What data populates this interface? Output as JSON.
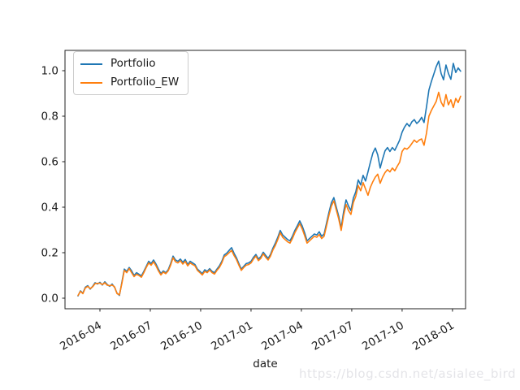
{
  "watermark": {
    "text": "https://blog.csdn.net/asialee_bird",
    "color": "#e4e4e8"
  },
  "chart_data": {
    "type": "line",
    "title": "",
    "xlabel": "date",
    "ylabel": "",
    "grid": false,
    "background": "#ffffff",
    "spine_color": "#222222",
    "tick_text_color": "#1a1a1a",
    "x_axis": {
      "range": [
        2016.0766,
        2018.0649
      ],
      "ticks": [
        2016.25,
        2016.5,
        2016.75,
        2017.0,
        2017.25,
        2017.5,
        2017.75,
        2018.0
      ],
      "tick_labels": [
        "2016-04",
        "2016-07",
        "2016-10",
        "2017-01",
        "2017-04",
        "2017-07",
        "2017-10",
        "2018-01"
      ],
      "label_rotation_deg": 30
    },
    "y_axis": {
      "range": [
        -0.0464,
        1.0893
      ],
      "ticks": [
        0.0,
        0.2,
        0.4,
        0.6,
        0.8,
        1.0
      ],
      "tick_labels": [
        "0.0",
        "0.2",
        "0.4",
        "0.6",
        "0.8",
        "1.0"
      ]
    },
    "legend": {
      "position": "upper-left",
      "entries": [
        {
          "label": "Portfolio",
          "color": "#1f77b4"
        },
        {
          "label": "Portfolio_EW",
          "color": "#ff7f0e"
        }
      ]
    },
    "x_start": 2016.1411,
    "x_step": 0.012097,
    "series": [
      {
        "name": "Portfolio",
        "color": "#1f77b4",
        "values": [
          0.01,
          0.032,
          0.022,
          0.048,
          0.055,
          0.04,
          0.052,
          0.068,
          0.062,
          0.07,
          0.058,
          0.072,
          0.06,
          0.052,
          0.062,
          0.048,
          0.022,
          0.012,
          0.07,
          0.128,
          0.118,
          0.135,
          0.12,
          0.1,
          0.112,
          0.105,
          0.098,
          0.118,
          0.14,
          0.162,
          0.152,
          0.168,
          0.15,
          0.128,
          0.108,
          0.12,
          0.112,
          0.125,
          0.152,
          0.185,
          0.168,
          0.162,
          0.172,
          0.158,
          0.17,
          0.148,
          0.162,
          0.155,
          0.148,
          0.128,
          0.118,
          0.108,
          0.125,
          0.118,
          0.13,
          0.118,
          0.112,
          0.128,
          0.142,
          0.162,
          0.19,
          0.198,
          0.21,
          0.222,
          0.198,
          0.178,
          0.152,
          0.128,
          0.14,
          0.152,
          0.155,
          0.162,
          0.18,
          0.192,
          0.172,
          0.182,
          0.202,
          0.188,
          0.175,
          0.192,
          0.22,
          0.242,
          0.268,
          0.298,
          0.278,
          0.268,
          0.258,
          0.252,
          0.272,
          0.298,
          0.318,
          0.34,
          0.318,
          0.288,
          0.252,
          0.262,
          0.272,
          0.282,
          0.278,
          0.292,
          0.272,
          0.282,
          0.33,
          0.378,
          0.42,
          0.442,
          0.4,
          0.36,
          0.308,
          0.38,
          0.432,
          0.405,
          0.385,
          0.44,
          0.468,
          0.52,
          0.498,
          0.54,
          0.515,
          0.555,
          0.598,
          0.638,
          0.66,
          0.63,
          0.572,
          0.612,
          0.648,
          0.662,
          0.645,
          0.662,
          0.65,
          0.672,
          0.695,
          0.73,
          0.752,
          0.768,
          0.755,
          0.775,
          0.785,
          0.768,
          0.778,
          0.795,
          0.772,
          0.84,
          0.915,
          0.952,
          0.985,
          1.018,
          1.042,
          0.988,
          0.96,
          1.025,
          0.988,
          0.962,
          1.032,
          0.992,
          1.012,
          0.998
        ]
      },
      {
        "name": "Portfolio_EW",
        "color": "#ff7f0e",
        "values": [
          0.012,
          0.03,
          0.02,
          0.045,
          0.052,
          0.042,
          0.05,
          0.064,
          0.065,
          0.066,
          0.06,
          0.068,
          0.057,
          0.055,
          0.058,
          0.05,
          0.02,
          0.015,
          0.065,
          0.122,
          0.112,
          0.13,
          0.112,
          0.095,
          0.105,
          0.1,
          0.092,
          0.112,
          0.135,
          0.155,
          0.145,
          0.16,
          0.142,
          0.12,
          0.102,
          0.115,
          0.108,
          0.12,
          0.145,
          0.178,
          0.16,
          0.155,
          0.165,
          0.15,
          0.162,
          0.142,
          0.155,
          0.148,
          0.142,
          0.122,
          0.112,
          0.102,
          0.118,
          0.112,
          0.124,
          0.112,
          0.106,
          0.122,
          0.135,
          0.155,
          0.182,
          0.19,
          0.2,
          0.21,
          0.188,
          0.17,
          0.145,
          0.122,
          0.135,
          0.145,
          0.148,
          0.155,
          0.172,
          0.185,
          0.165,
          0.175,
          0.195,
          0.18,
          0.168,
          0.185,
          0.212,
          0.232,
          0.258,
          0.288,
          0.268,
          0.258,
          0.248,
          0.242,
          0.262,
          0.288,
          0.308,
          0.328,
          0.305,
          0.275,
          0.242,
          0.252,
          0.262,
          0.272,
          0.268,
          0.28,
          0.262,
          0.272,
          0.318,
          0.365,
          0.405,
          0.428,
          0.388,
          0.348,
          0.298,
          0.362,
          0.412,
          0.385,
          0.368,
          0.42,
          0.448,
          0.495,
          0.472,
          0.508,
          0.48,
          0.452,
          0.488,
          0.512,
          0.532,
          0.545,
          0.505,
          0.532,
          0.552,
          0.565,
          0.555,
          0.572,
          0.56,
          0.58,
          0.598,
          0.645,
          0.66,
          0.655,
          0.665,
          0.68,
          0.695,
          0.685,
          0.695,
          0.7,
          0.672,
          0.725,
          0.8,
          0.825,
          0.845,
          0.865,
          0.905,
          0.862,
          0.842,
          0.895,
          0.85,
          0.872,
          0.838,
          0.878,
          0.86,
          0.888
        ]
      }
    ]
  }
}
